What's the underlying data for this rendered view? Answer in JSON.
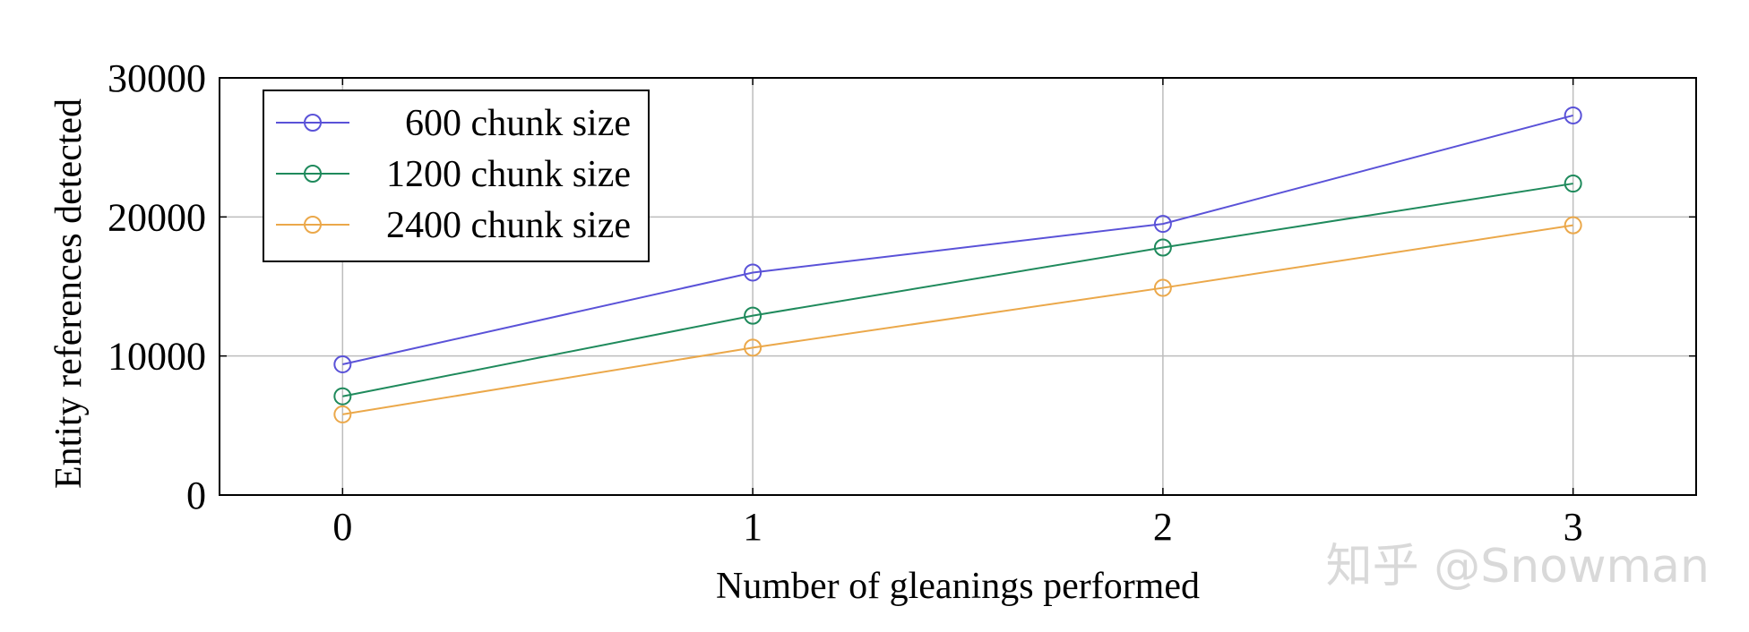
{
  "chart_data": {
    "type": "line",
    "x": [
      0,
      1,
      2,
      3
    ],
    "xlabel": "Number of gleanings performed",
    "ylabel": "Entity references detected",
    "xlim": [
      -0.3,
      3.3
    ],
    "ylim": [
      0,
      30000
    ],
    "xticks": [
      "0",
      "1",
      "2",
      "3"
    ],
    "yticks": [
      "0",
      "10000",
      "20000",
      "30000"
    ],
    "grid": true,
    "legend_position": "top-left",
    "marker": "open-circle",
    "series": [
      {
        "name": "600 chunk size",
        "color": "#5a52d8",
        "values": [
          9400,
          16000,
          19500,
          27300
        ]
      },
      {
        "name": "1200 chunk size",
        "color": "#1f8a5c",
        "values": [
          7100,
          12900,
          17800,
          22400
        ]
      },
      {
        "name": "2400 chunk size",
        "color": "#eba84a",
        "values": [
          5800,
          10600,
          14900,
          19400
        ]
      }
    ]
  },
  "watermark": "知乎 @Snowman"
}
